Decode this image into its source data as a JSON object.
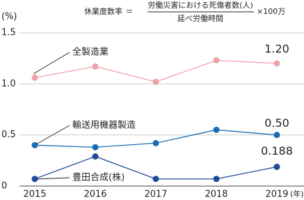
{
  "chart_data": {
    "type": "line",
    "formula": {
      "label": "休業度数率",
      "equals": "＝",
      "numerator": "労働災害における死傷者数(人)",
      "denominator": "延べ労働時間",
      "multiplier": "×100万"
    },
    "y_label": "(%)",
    "x_unit": "(年)",
    "categories": [
      "2015",
      "2016",
      "2017",
      "2018",
      "2019"
    ],
    "ylim": [
      0,
      1.5
    ],
    "yticks": [
      0,
      0.5,
      {
        "value": 1,
        "label": "1.0"
      },
      1.5
    ],
    "grid": true,
    "series": [
      {
        "name": "全製造業",
        "color": "#f0a2aa",
        "values": [
          1.06,
          1.17,
          1.02,
          1.23,
          1.2
        ],
        "value_labels": [
          null,
          null,
          null,
          null,
          "1.20"
        ]
      },
      {
        "name": "輸送用機器製造",
        "color": "#1a6db5",
        "values": [
          0.4,
          0.38,
          0.42,
          0.55,
          0.5
        ],
        "value_labels": [
          null,
          null,
          null,
          null,
          "0.50"
        ]
      },
      {
        "name": "豊田合成(株)",
        "color": "#1f4a9a",
        "values": [
          0.07,
          0.29,
          0.07,
          0.07,
          0.188
        ],
        "value_labels": [
          null,
          null,
          null,
          null,
          "0.188"
        ]
      }
    ]
  }
}
